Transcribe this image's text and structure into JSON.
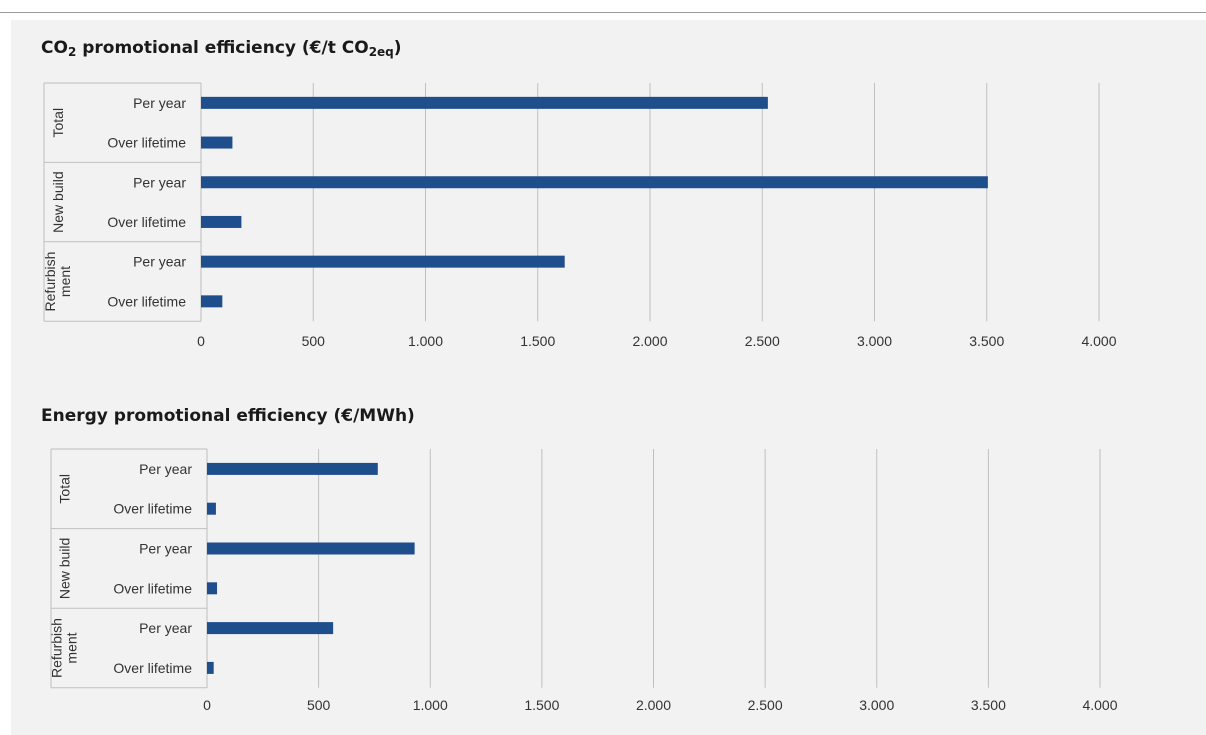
{
  "chart_data": [
    {
      "type": "bar",
      "orientation": "horizontal",
      "title_parts": {
        "a": "CO",
        "sub1": "2",
        "b": " promotional efficiency (€/t CO",
        "sub2": "2eq",
        "c": ")"
      },
      "groups": [
        {
          "label": "Total",
          "categories": [
            "Per year",
            "Over lifetime"
          ],
          "values": [
            2525,
            140
          ]
        },
        {
          "label": "New build",
          "categories": [
            "Per year",
            "Over lifetime"
          ],
          "values": [
            3505,
            180
          ]
        },
        {
          "label_lines": [
            "Refurbish",
            "ment"
          ],
          "categories": [
            "Per year",
            "Over lifetime"
          ],
          "values": [
            1620,
            95
          ]
        }
      ],
      "ticks": [
        "0",
        "500",
        "1.000",
        "1.500",
        "2.000",
        "2.500",
        "3.000",
        "3.500",
        "4.000"
      ],
      "xlim": [
        0,
        4000
      ],
      "grid": true,
      "legend": "none",
      "bar_color": "#1f4e8c"
    },
    {
      "type": "bar",
      "orientation": "horizontal",
      "title": "Energy promotional efficiency (€/MWh)",
      "groups": [
        {
          "label": "Total",
          "categories": [
            "Per year",
            "Over lifetime"
          ],
          "values": [
            765,
            40
          ]
        },
        {
          "label": "New build",
          "categories": [
            "Per year",
            "Over lifetime"
          ],
          "values": [
            930,
            45
          ]
        },
        {
          "label_lines": [
            "Refurbish",
            "ment"
          ],
          "categories": [
            "Per year",
            "Over lifetime"
          ],
          "values": [
            565,
            30
          ]
        }
      ],
      "ticks": [
        "0",
        "500",
        "1.000",
        "1.500",
        "2.000",
        "2.500",
        "3.000",
        "3.500",
        "4.000"
      ],
      "xlim": [
        0,
        4000
      ],
      "grid": true,
      "legend": "none",
      "bar_color": "#1f4e8c"
    }
  ]
}
